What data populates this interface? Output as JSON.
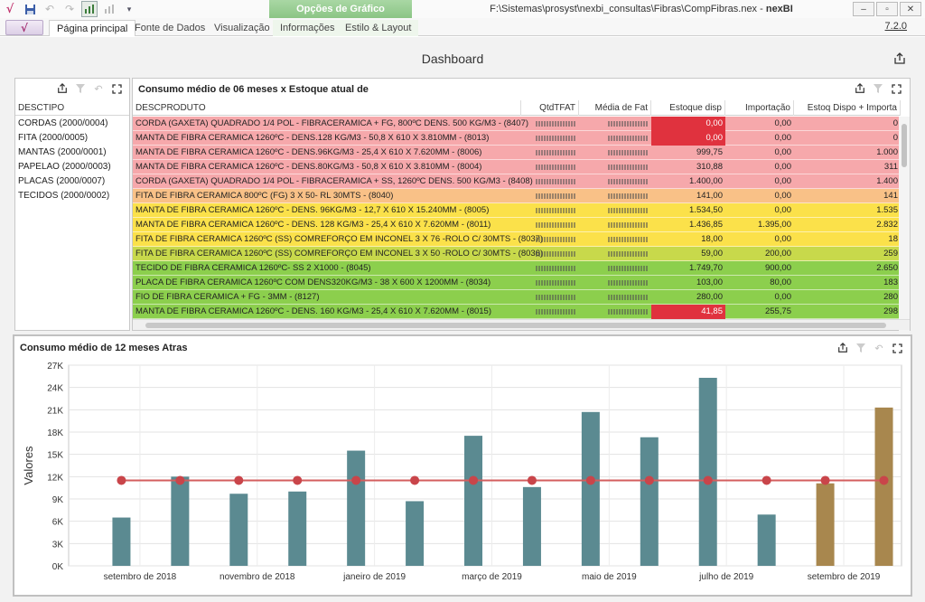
{
  "window": {
    "title_path": "F:\\Sistemas\\prosyst\\nexbi_consultas\\Fibras\\CompFibras.nex",
    "title_sep": " - ",
    "title_app": "nexBI",
    "context_group": "Opções de Gráfico",
    "version": "7.2.0"
  },
  "ribbon": {
    "tabs": [
      "Página principal",
      "Fonte de Dados",
      "Visualização",
      "Informações",
      "Estilo & Layout"
    ]
  },
  "dashboard": {
    "title": "Dashboard"
  },
  "list_panel": {
    "header": "DESCTIPO",
    "items": [
      "CORDAS (2000/0004)",
      "FITA (2000/0005)",
      "MANTAS (2000/0001)",
      "PAPELAO (2000/0003)",
      "PLACAS (2000/0007)",
      "TECIDOS (2000/0002)"
    ]
  },
  "grid_panel": {
    "title": "Consumo médio de 06 meses x Estoque atual de",
    "columns": [
      "DESCPRODUTO",
      "QtdTFAT",
      "Média de Fat",
      "Estoque disp",
      "Importação",
      "Estoq Dispo + Importa"
    ],
    "rows": [
      {
        "desc": "CORDA (GAXETA) QUADRADO 1/4 POL - FIBRACERAMICA + FG, 800ºC DENS. 500 KG/M3 - (8407)",
        "estoque": "0,00",
        "import": "0,00",
        "total": "0",
        "color": "#f6a8ab",
        "alert": true
      },
      {
        "desc": "MANTA DE FIBRA CERAMICA 1260ºC - DENS.128 KG/M3 - 50,8 X 610 X 3.810MM - (8013)",
        "estoque": "0,00",
        "import": "0,00",
        "total": "0",
        "color": "#f6a8ab",
        "alert": true
      },
      {
        "desc": "MANTA DE FIBRA CERAMICA 1260ºC - DENS.96KG/M3 - 25,4 X 610 X 7.620MM - (8006)",
        "estoque": "999,75",
        "import": "0,00",
        "total": "1.000",
        "color": "#f6a8ab",
        "alert": false
      },
      {
        "desc": "MANTA DE FIBRA CERAMICA 1260ºC - DENS.80KG/M3 - 50,8 X 610 X 3.810MM - (8004)",
        "estoque": "310,88",
        "import": "0,00",
        "total": "311",
        "color": "#f6a8ab",
        "alert": false
      },
      {
        "desc": "CORDA (GAXETA) QUADRADO 1/4 POL - FIBRACERAMICA + SS, 1260ºC DENS. 500 KG/M3 - (8408)",
        "estoque": "1.400,00",
        "import": "0,00",
        "total": "1.400",
        "color": "#f6a8ab",
        "alert": false
      },
      {
        "desc": "FITA DE FIBRA CERAMICA 800ºC (FG) 3 X 50- RL 30MTS - (8040)",
        "estoque": "141,00",
        "import": "0,00",
        "total": "141",
        "color": "#f9c187",
        "alert": false
      },
      {
        "desc": "MANTA DE FIBRA CERAMICA 1260ºC - DENS. 96KG/M3 - 12,7 X 610 X 15.240MM - (8005)",
        "estoque": "1.534,50",
        "import": "0,00",
        "total": "1.535",
        "color": "#fbe14a",
        "alert": false
      },
      {
        "desc": "MANTA DE FIBRA CERAMICA 1260ºC - DENS. 128 KG/M3 - 25,4 X 610 X 7.620MM - (8011)",
        "estoque": "1.436,85",
        "import": "1.395,00",
        "total": "2.832",
        "color": "#fbe14a",
        "alert": false
      },
      {
        "desc": "FITA DE FIBRA CERAMICA 1260ºC (SS) COMREFORÇO EM INCONEL 3 X 76 -ROLO C/ 30MTS - (8037)",
        "estoque": "18,00",
        "import": "0,00",
        "total": "18",
        "color": "#fbe14a",
        "alert": false
      },
      {
        "desc": "FITA DE FIBRA CERAMICA 1260ºC (SS) COMREFORÇO EM INCONEL 3 X 50 -ROLO C/ 30MTS - (8036)",
        "estoque": "59,00",
        "import": "200,00",
        "total": "259",
        "color": "#c8d94b",
        "alert": false
      },
      {
        "desc": "TECIDO DE FIBRA CERAMICA 1260ºC- SS 2 X1000 - (8045)",
        "estoque": "1.749,70",
        "import": "900,00",
        "total": "2.650",
        "color": "#8ccf4d",
        "alert": false
      },
      {
        "desc": "PLACA DE FIBRA CERAMICA 1260ºC COM DENS320KG/M3 - 38 X 600 X 1200MM - (8034)",
        "estoque": "103,00",
        "import": "80,00",
        "total": "183",
        "color": "#8ccf4d",
        "alert": false
      },
      {
        "desc": "FIO DE FIBRA CERAMICA + FG - 3MM - (8127)",
        "estoque": "280,00",
        "import": "0,00",
        "total": "280",
        "color": "#8ccf4d",
        "alert": false
      },
      {
        "desc": "MANTA DE FIBRA CERAMICA 1260ºC - DENS. 160 KG/M3 - 25,4 X 610 X 7.620MM - (8015)",
        "estoque": "41,85",
        "import": "255,75",
        "total": "298",
        "color": "#8ccf4d",
        "alert_estoque": true
      }
    ]
  },
  "chart_panel": {
    "title": "Consumo médio de 12 meses Atras"
  },
  "chart_data": {
    "type": "bar",
    "ylabel": "Valores",
    "ylim": [
      0,
      27000
    ],
    "yticks": [
      "0K",
      "3K",
      "6K",
      "9K",
      "12K",
      "15K",
      "18K",
      "21K",
      "24K",
      "27K"
    ],
    "xtick_labels": [
      "setembro de 2018",
      "novembro de 2018",
      "janeiro de 2019",
      "março de 2019",
      "maio de 2019",
      "julho de 2019",
      "setembro de 2019"
    ],
    "bar_colors": {
      "historic": "#5b8a91",
      "recent": "#a8874e"
    },
    "line_color": "#d35e5e",
    "series": [
      {
        "kind": "bar",
        "values": [
          6500,
          12000,
          9700,
          10000,
          15500,
          8700,
          17500,
          10600,
          20700,
          17300,
          25300,
          6900,
          11100,
          21300
        ],
        "color_groups": [
          "historic",
          "historic",
          "historic",
          "historic",
          "historic",
          "historic",
          "historic",
          "historic",
          "historic",
          "historic",
          "historic",
          "historic",
          "recent",
          "recent"
        ]
      },
      {
        "kind": "line",
        "values": [
          11500,
          11500,
          11500,
          11500,
          11500,
          11500,
          11500,
          11500,
          11500,
          11500,
          11500,
          11500,
          11500,
          11500
        ]
      }
    ],
    "grid": true
  }
}
